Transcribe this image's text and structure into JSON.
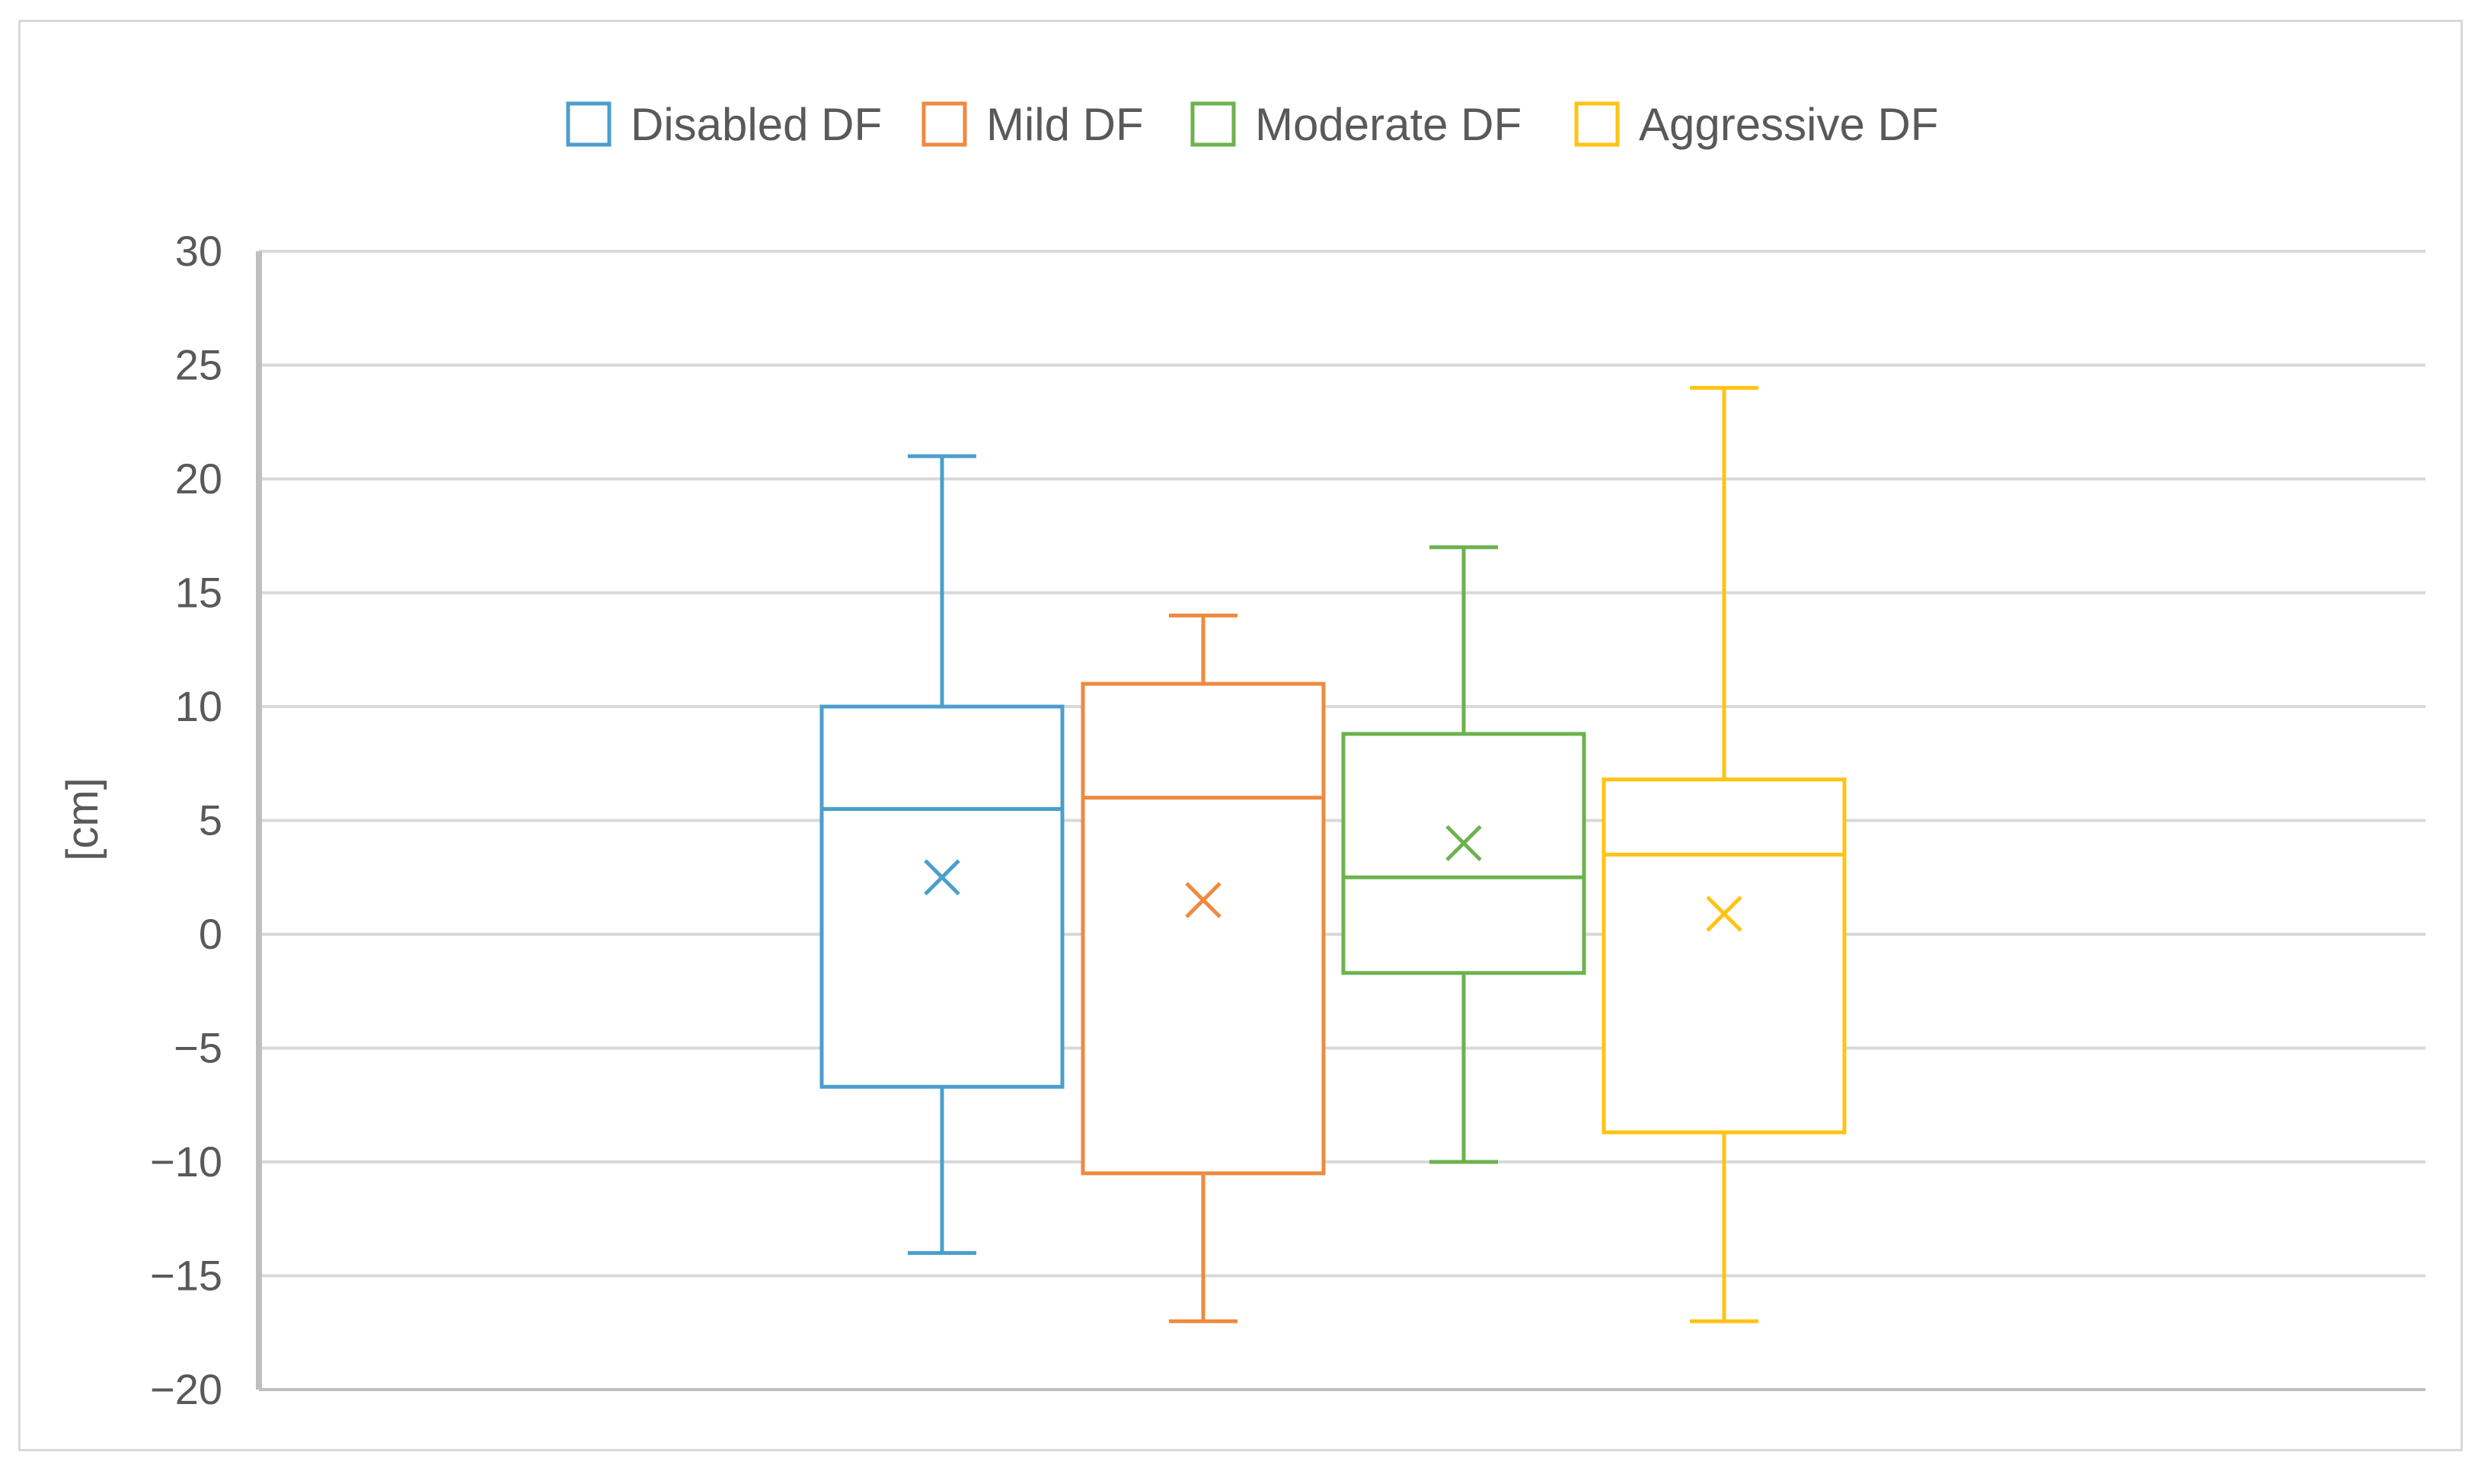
{
  "chart_data": {
    "type": "box",
    "title": "",
    "xlabel": "",
    "ylabel": "[cm]",
    "ylim": [
      -20,
      30
    ],
    "yticks": [
      30,
      25,
      20,
      15,
      10,
      5,
      0,
      -5,
      -10,
      -15,
      -20
    ],
    "ytick_labels": [
      "30",
      "25",
      "20",
      "15",
      "10",
      "5",
      "0",
      "−5",
      "−10",
      "−15",
      "−20"
    ],
    "grid": true,
    "legend_position": "top",
    "series": [
      {
        "name": "Disabled DF",
        "color": "#4a9fcc",
        "min": -14,
        "q1": -6.7,
        "median": 5.5,
        "q3": 10,
        "max": 21,
        "mean": 2.5
      },
      {
        "name": "Mild DF",
        "color": "#ee8a40",
        "min": -17,
        "q1": -10.5,
        "median": 6,
        "q3": 11,
        "max": 14,
        "mean": 1.5
      },
      {
        "name": "Moderate DF",
        "color": "#6db24e",
        "min": -10,
        "q1": -1.7,
        "median": 2.5,
        "q3": 8.8,
        "max": 17,
        "mean": 4
      },
      {
        "name": "Aggressive DF",
        "color": "#ffc313",
        "min": -17,
        "q1": -8.7,
        "median": 3.5,
        "q3": 6.8,
        "max": 24,
        "mean": 0.9
      }
    ]
  }
}
